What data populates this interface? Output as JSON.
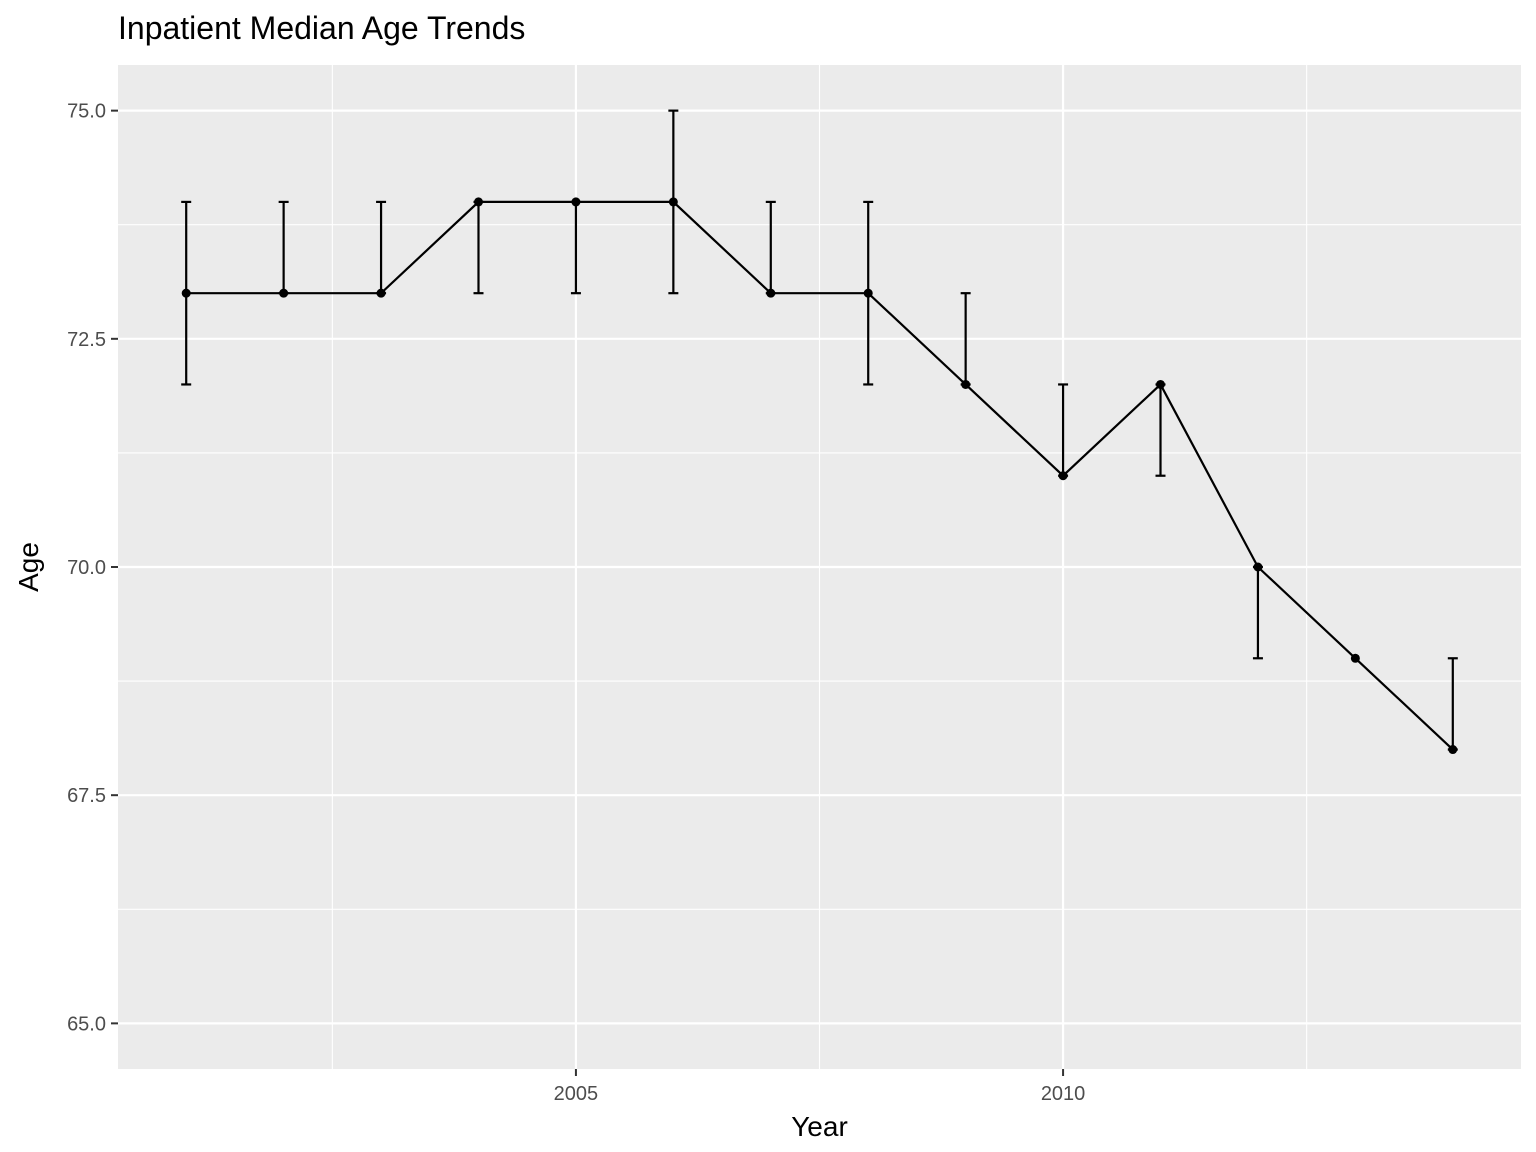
{
  "chart_data": {
    "type": "line",
    "title": "Inpatient Median Age Trends",
    "xlabel": "Year",
    "ylabel": "Age",
    "x_ticks": [
      2005,
      2010
    ],
    "y_ticks": [
      65.0,
      67.5,
      70.0,
      72.5,
      75.0
    ],
    "y_tick_labels": [
      "65.0",
      "67.5",
      "70.0",
      "72.5",
      "75.0"
    ],
    "x_tick_labels": [
      "2005",
      "2010"
    ],
    "xlim": [
      2000.3,
      2014.7
    ],
    "ylim": [
      64.5,
      75.5
    ],
    "grid": true,
    "series": [
      {
        "name": "Median Age",
        "x": [
          2001,
          2002,
          2003,
          2004,
          2005,
          2006,
          2007,
          2008,
          2009,
          2010,
          2011,
          2012,
          2013,
          2014
        ],
        "values": [
          73,
          73,
          73,
          74,
          74,
          74,
          73,
          73,
          72,
          71,
          72,
          70,
          69,
          68
        ],
        "lower": [
          72,
          73,
          73,
          73,
          73,
          73,
          73,
          72,
          72,
          71,
          71,
          69,
          69,
          68
        ],
        "upper": [
          74,
          74,
          74,
          74,
          74,
          75,
          74,
          74,
          73,
          72,
          72,
          70,
          69,
          69
        ]
      }
    ]
  }
}
